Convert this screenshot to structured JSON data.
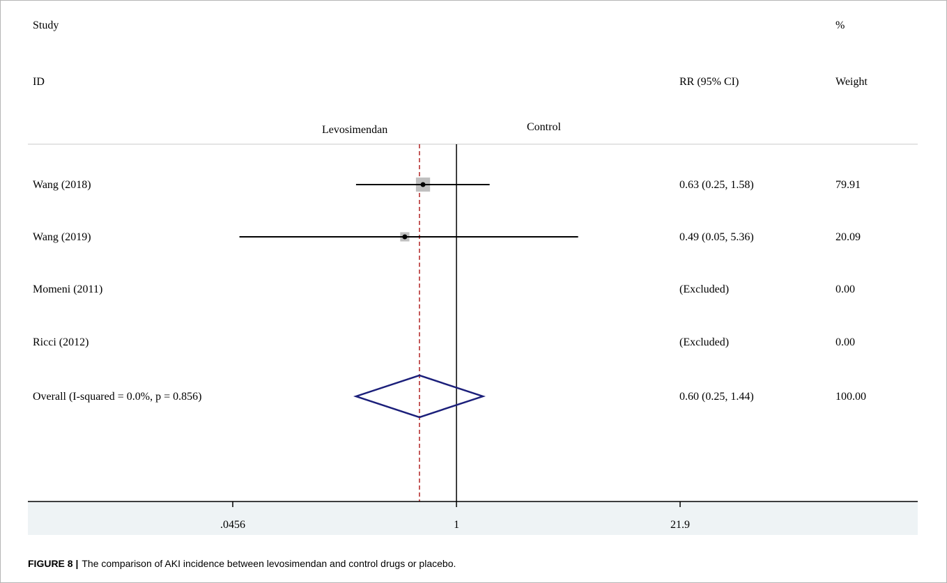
{
  "header": {
    "study": "Study",
    "id": "ID",
    "rr_ci": "RR (95% CI)",
    "percent": "%",
    "weight": "Weight",
    "favours_left": "Levosimendan",
    "favours_right": "Control"
  },
  "caption": {
    "label": "FIGURE 8 |",
    "text": "The comparison of AKI incidence between levosimendan and control drugs or placebo."
  },
  "colors": {
    "diamond": "#1b1f7a",
    "overall_line": "#b22222",
    "weight_box": "#c0c0c0",
    "axis_band": "#eef3f5"
  },
  "chart_data": {
    "type": "forest",
    "measure": "RR",
    "scale": "log",
    "null_value": 1,
    "xticks": [
      {
        "value": 0.0456,
        "label": ".0456"
      },
      {
        "value": 1,
        "label": "1"
      },
      {
        "value": 21.9,
        "label": "21.9"
      }
    ],
    "studies": [
      {
        "name": "Wang (2018)",
        "rr": 0.63,
        "lower": 0.25,
        "upper": 1.58,
        "ci_text": "0.63 (0.25, 1.58)",
        "weight": 79.91,
        "weight_text": "79.91"
      },
      {
        "name": "Wang (2019)",
        "rr": 0.49,
        "lower": 0.05,
        "upper": 5.36,
        "ci_text": "0.49 (0.05, 5.36)",
        "weight": 20.09,
        "weight_text": "20.09"
      },
      {
        "name": "Momeni (2011)",
        "rr": null,
        "lower": null,
        "upper": null,
        "ci_text": "(Excluded)",
        "weight": 0,
        "weight_text": "0.00"
      },
      {
        "name": "Ricci (2012)",
        "rr": null,
        "lower": null,
        "upper": null,
        "ci_text": "(Excluded)",
        "weight": 0,
        "weight_text": "0.00"
      }
    ],
    "overall": {
      "label": "Overall  (I-squared = 0.0%, p = 0.856)",
      "rr": 0.6,
      "lower": 0.25,
      "upper": 1.44,
      "ci_text": "0.60 (0.25, 1.44)",
      "weight_text": "100.00"
    }
  }
}
